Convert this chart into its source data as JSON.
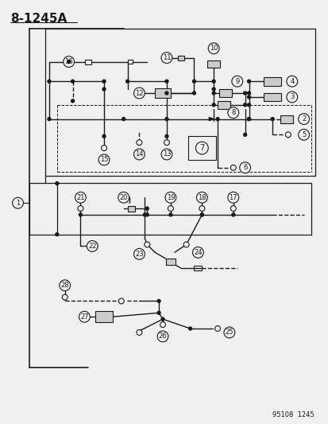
{
  "title": "8-1245A",
  "footer": "95108  1245",
  "bg_color": "#f0f0f0",
  "line_color": "#1a1a1a",
  "fig_width": 4.14,
  "fig_height": 5.33,
  "dpi": 100
}
